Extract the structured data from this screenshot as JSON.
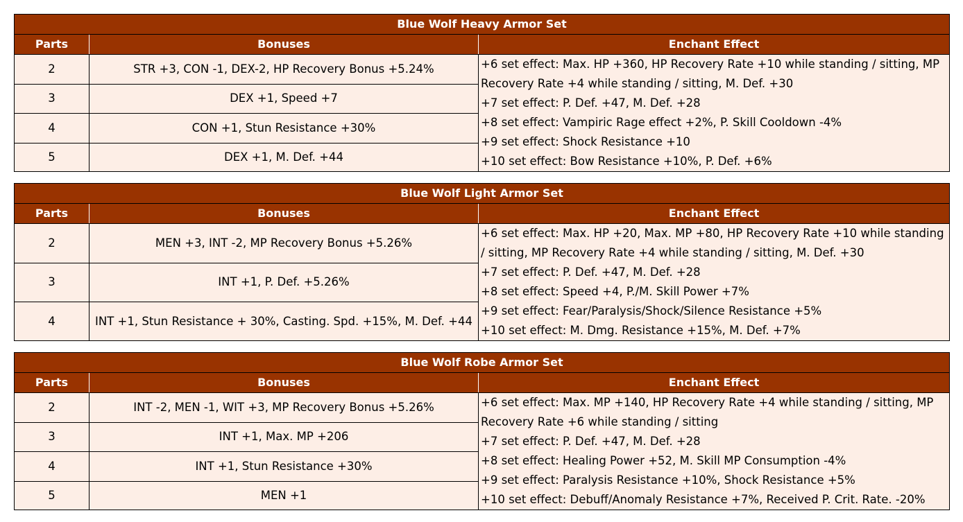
{
  "columns": {
    "parts": "Parts",
    "bonuses": "Bonuses",
    "enchant": "Enchant Effect"
  },
  "sets": [
    {
      "title": "Blue Wolf Heavy Armor Set",
      "rows": [
        {
          "parts": "2",
          "bonus": "STR +3, CON -1, DEX-2, HP Recovery Bonus +5.24%"
        },
        {
          "parts": "3",
          "bonus": "DEX +1, Speed +7"
        },
        {
          "parts": "4",
          "bonus": "CON +1, Stun Resistance +30%"
        },
        {
          "parts": "5",
          "bonus": "DEX +1, M. Def. +44"
        }
      ],
      "enchant": [
        "+6 set effect: Max. HP +360, HP Recovery Rate +10 while standing / sitting, MP Recovery Rate +4 while standing / sitting, M. Def. +30",
        "+7 set effect: P. Def. +47, M. Def. +28",
        "+8 set effect: Vampiric Rage effect +2%, P. Skill Cooldown -4%",
        "+9 set effect: Shock Resistance +10",
        "+10 set effect: Bow Resistance +10%, P. Def. +6%"
      ]
    },
    {
      "title": "Blue Wolf Light Armor Set",
      "rows": [
        {
          "parts": "2",
          "bonus": "MEN +3, INT -2, MP Recovery Bonus +5.26%"
        },
        {
          "parts": "3",
          "bonus": "INT +1, P. Def. +5.26%"
        },
        {
          "parts": "4",
          "bonus": "INT +1, Stun Resistance + 30%, Casting. Spd. +15%, M. Def. +44"
        }
      ],
      "enchant": [
        "+6 set effect: Max. HP +20, Max. MP +80, HP Recovery Rate +10 while standing / sitting, MP Recovery Rate +4 while standing / sitting, M. Def. +30",
        "+7 set effect: P. Def. +47, M. Def. +28",
        "+8 set effect: Speed +4, P./M. Skill Power +7%",
        "+9 set effect: Fear/Paralysis/Shock/Silence Resistance +5%",
        "+10 set effect: M. Dmg. Resistance +15%, M. Def. +7%"
      ]
    },
    {
      "title": "Blue Wolf Robe Armor Set",
      "rows": [
        {
          "parts": "2",
          "bonus": "INT -2, MEN -1, WIT +3, MP Recovery Bonus +5.26%"
        },
        {
          "parts": "3",
          "bonus": "INT +1, Max. MP +206"
        },
        {
          "parts": "4",
          "bonus": "INT +1, Stun Resistance +30%"
        },
        {
          "parts": "5",
          "bonus": "MEN +1"
        }
      ],
      "enchant": [
        "+6 set effect: Max. MP +140, HP Recovery Rate +4 while standing / sitting, MP Recovery Rate +6 while standing / sitting",
        "+7 set effect: P. Def. +47, M. Def. +28",
        "+8 set effect: Healing Power +52, M. Skill MP Consumption -4%",
        "+9 set effect: Paralysis Resistance +10%, Shock Resistance +5%",
        "+10 set effect: Debuff/Anomaly Resistance +7%, Received P. Crit. Rate. -20%"
      ]
    }
  ]
}
